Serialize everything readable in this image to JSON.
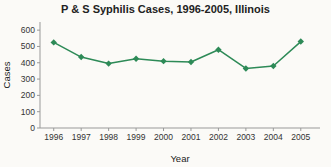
{
  "chart_data": {
    "type": "line",
    "title": "P & S Syphilis Cases, 1996-2005, Illinois",
    "xlabel": "Year",
    "ylabel": "Cases",
    "x": [
      1996,
      1997,
      1998,
      1999,
      2000,
      2001,
      2002,
      2003,
      2004,
      2005
    ],
    "values": [
      525,
      435,
      395,
      425,
      410,
      405,
      480,
      365,
      380,
      530
    ],
    "xlim": [
      1995.5,
      2005.7
    ],
    "xticks": [
      1996,
      1997,
      1998,
      1999,
      2000,
      2001,
      2002,
      2003,
      2004,
      2005
    ],
    "ylim": [
      0,
      650
    ],
    "yticks": [
      0,
      100,
      200,
      300,
      400,
      500,
      600
    ],
    "color": "#2d8a57",
    "marker": "diamond",
    "grid": false
  }
}
